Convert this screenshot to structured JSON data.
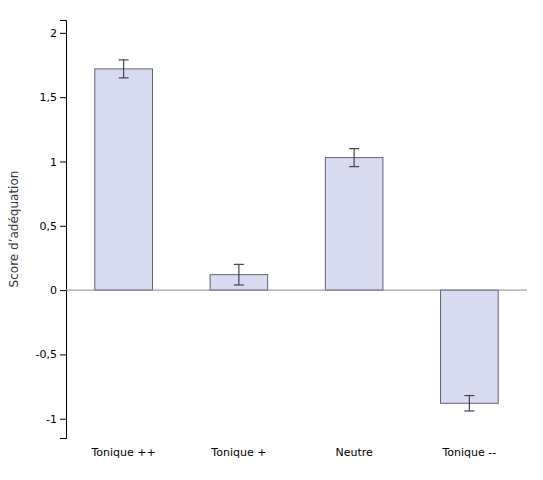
{
  "chart_data": {
    "type": "bar",
    "categories": [
      "Tonique ++",
      "Tonique +",
      "Neutre",
      "Tonique --"
    ],
    "values": [
      1.72,
      0.12,
      1.03,
      -0.88
    ],
    "errors": [
      0.07,
      0.08,
      0.07,
      0.06
    ],
    "color": "#d8daf0",
    "ylabel": "Score d’adéquation",
    "ylim": [
      -1.15,
      2.1
    ],
    "yticks": [
      -1,
      {
        "value": -0.5,
        "label": "-0,5"
      },
      0,
      {
        "value": 0.5,
        "label": "0,5"
      },
      1,
      {
        "value": 1.5,
        "label": "1,5"
      },
      2
    ],
    "grid": false
  }
}
